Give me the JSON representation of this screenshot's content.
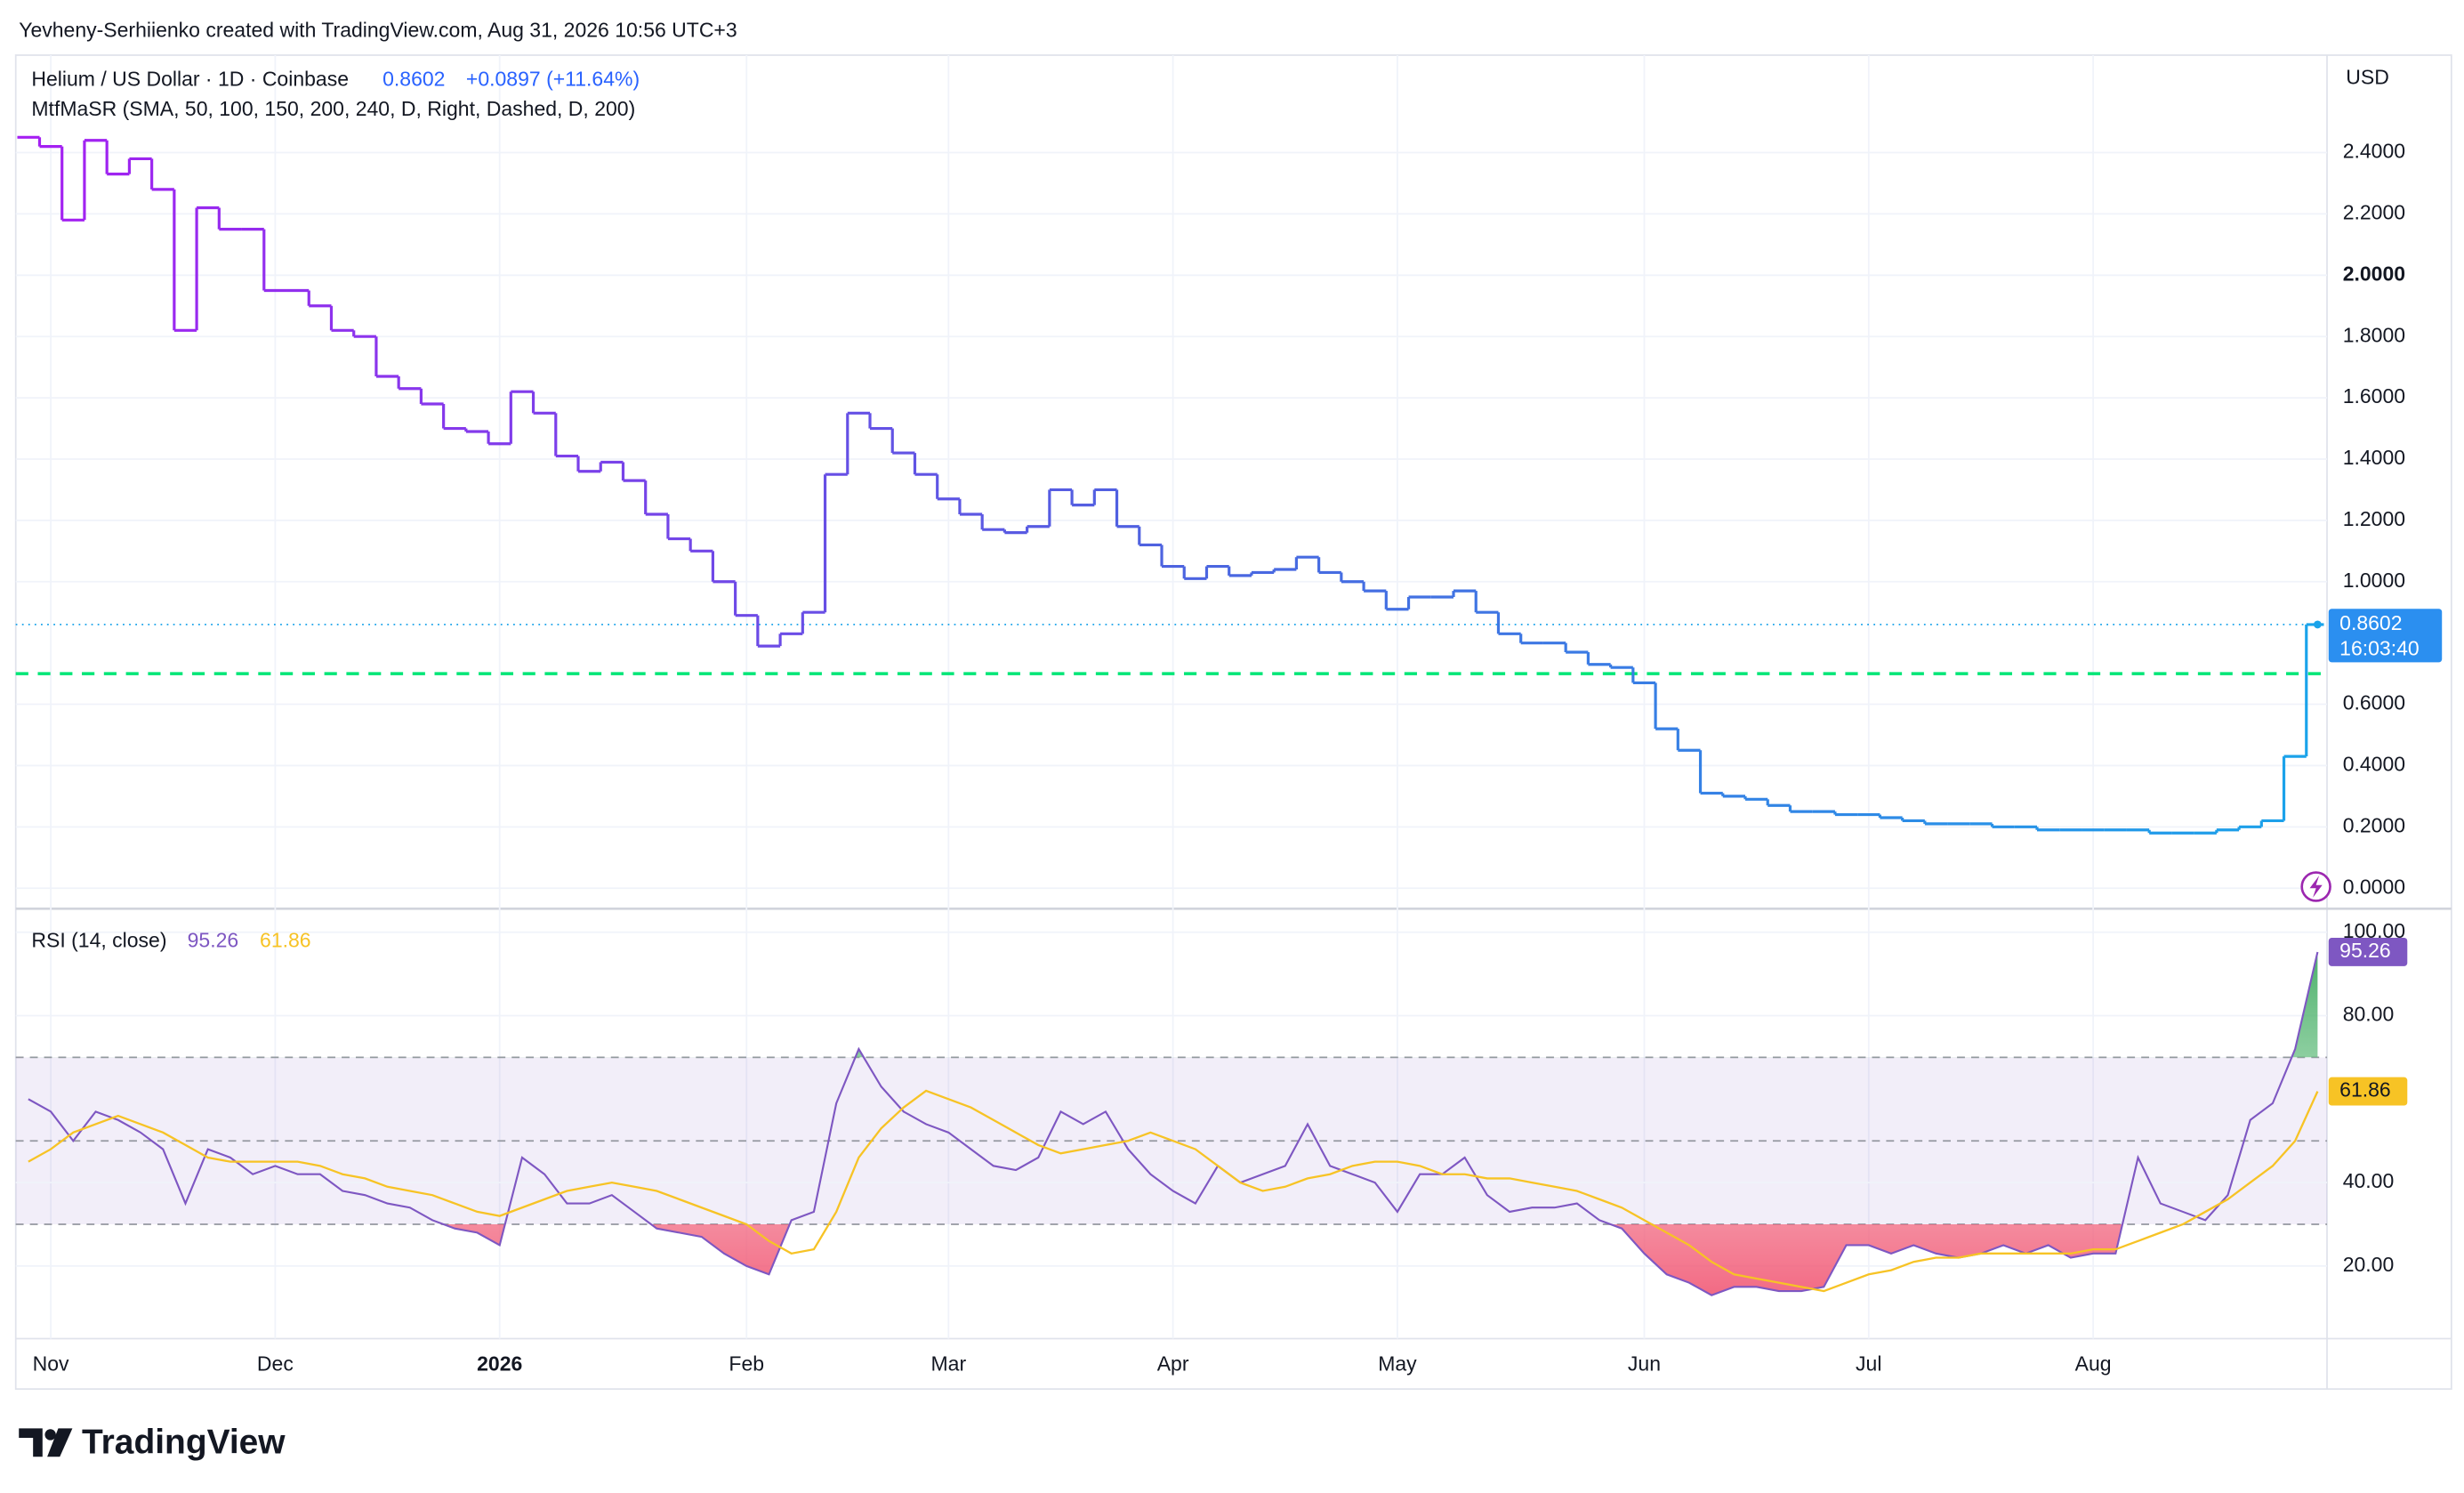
{
  "header": "Yevheny-Serhiienko created with TradingView.com, Aug 31, 2026 10:56 UTC+3",
  "logo": "TradingView",
  "chart_data": [
    {
      "type": "step-line",
      "title": "Helium / US Dollar · 1D · Coinbase",
      "change": "+0.0897 (+11.64%)",
      "indicator": "MtfMaSR (SMA, 50, 100, 150, 200, 240, D, Right, Dashed, D, 200)",
      "currency": "USD",
      "countdown": "16:03:40",
      "colors": [
        "#a61ff2",
        "#4d63e0",
        "#1aa3ea"
      ],
      "levels": [
        {
          "value": 0.7,
          "color": "#00e676"
        }
      ],
      "categories": [
        null,
        "Nov",
        null,
        null,
        null,
        null,
        null,
        null,
        null,
        null,
        null,
        "Dec",
        null,
        null,
        null,
        null,
        null,
        null,
        null,
        null,
        null,
        "2026",
        null,
        null,
        null,
        null,
        null,
        null,
        null,
        null,
        null,
        null,
        "Feb",
        null,
        null,
        null,
        null,
        null,
        null,
        null,
        null,
        "Mar",
        null,
        null,
        null,
        null,
        null,
        null,
        null,
        null,
        null,
        "Apr",
        null,
        null,
        null,
        null,
        null,
        null,
        null,
        null,
        null,
        "May",
        null,
        null,
        null,
        null,
        null,
        null,
        null,
        null,
        null,
        null,
        "Jun",
        null,
        null,
        null,
        null,
        null,
        null,
        null,
        null,
        null,
        "Jul",
        null,
        null,
        null,
        null,
        null,
        null,
        null,
        null,
        null,
        "Aug",
        null,
        null,
        null,
        null,
        null,
        null,
        null,
        null,
        null,
        null
      ],
      "values": [
        2.45,
        2.42,
        2.18,
        2.44,
        2.33,
        2.38,
        2.28,
        1.82,
        2.22,
        2.15,
        2.15,
        1.95,
        1.95,
        1.9,
        1.82,
        1.8,
        1.67,
        1.63,
        1.58,
        1.5,
        1.49,
        1.45,
        1.62,
        1.55,
        1.41,
        1.36,
        1.39,
        1.33,
        1.22,
        1.14,
        1.1,
        1.0,
        0.89,
        0.79,
        0.83,
        0.9,
        1.35,
        1.55,
        1.5,
        1.42,
        1.35,
        1.27,
        1.22,
        1.17,
        1.16,
        1.18,
        1.3,
        1.25,
        1.3,
        1.18,
        1.12,
        1.05,
        1.01,
        1.05,
        1.02,
        1.03,
        1.04,
        1.08,
        1.03,
        1.0,
        0.97,
        0.91,
        0.95,
        0.95,
        0.97,
        0.9,
        0.83,
        0.8,
        0.8,
        0.77,
        0.73,
        0.72,
        0.67,
        0.52,
        0.45,
        0.31,
        0.3,
        0.29,
        0.27,
        0.25,
        0.25,
        0.24,
        0.24,
        0.23,
        0.22,
        0.21,
        0.21,
        0.21,
        0.2,
        0.2,
        0.19,
        0.19,
        0.19,
        0.19,
        0.19,
        0.18,
        0.18,
        0.18,
        0.19,
        0.2,
        0.22,
        0.43,
        0.8602
      ],
      "ylim": [
        -0.067,
        2.718
      ],
      "yticks": [
        {
          "value": 0,
          "label": "0.0000"
        },
        {
          "value": 0.2,
          "label": "0.2000"
        },
        {
          "value": 0.4,
          "label": "0.4000"
        },
        {
          "value": 0.6,
          "label": "0.6000"
        },
        {
          "value": 1.0,
          "label": "1.0000"
        },
        {
          "value": 1.2,
          "label": "1.2000"
        },
        {
          "value": 1.4,
          "label": "1.4000"
        },
        {
          "value": 1.6,
          "label": "1.6000"
        },
        {
          "value": 1.8,
          "label": "1.8000"
        },
        {
          "value": 2.0,
          "label": "2.0000"
        },
        {
          "value": 2.2,
          "label": "2.2000"
        },
        {
          "value": 2.4,
          "label": "2.4000"
        }
      ],
      "grid": true
    },
    {
      "type": "line",
      "title": "RSI (14, close)",
      "series": [
        {
          "color": "#7e57c2",
          "values": [
            60,
            57,
            50,
            57,
            55,
            52,
            48,
            35,
            48,
            46,
            42,
            44,
            42,
            42,
            38,
            37,
            35,
            34,
            31,
            29,
            28,
            25,
            46,
            42,
            35,
            35,
            37,
            33,
            29,
            28,
            27,
            23,
            20,
            18,
            31,
            33,
            59,
            72,
            63,
            57,
            54,
            52,
            48,
            44,
            43,
            46,
            57,
            54,
            57,
            48,
            42,
            38,
            35,
            44,
            40,
            42,
            44,
            54,
            44,
            42,
            40,
            33,
            42,
            42,
            46,
            37,
            33,
            34,
            34,
            35,
            31,
            29,
            23,
            18,
            16,
            13,
            15,
            15,
            14,
            14,
            15,
            25,
            25,
            23,
            25,
            23,
            22,
            23,
            25,
            23,
            25,
            22,
            23,
            23,
            46,
            35,
            33,
            31,
            37,
            55,
            59,
            72,
            95.26
          ]
        },
        {
          "color": "#f7c325",
          "values": [
            45,
            48,
            52,
            54,
            56,
            54,
            52,
            49,
            46,
            45,
            45,
            45,
            45,
            44,
            42,
            41,
            39,
            38,
            37,
            35,
            33,
            32,
            34,
            36,
            38,
            39,
            40,
            39,
            38,
            36,
            34,
            32,
            30,
            26,
            23,
            24,
            33,
            46,
            53,
            58,
            62,
            60,
            58,
            55,
            52,
            49,
            47,
            48,
            49,
            50,
            52,
            50,
            48,
            44,
            40,
            38,
            39,
            41,
            42,
            44,
            45,
            45,
            44,
            42,
            42,
            41,
            41,
            40,
            39,
            38,
            36,
            34,
            31,
            28,
            25,
            21,
            18,
            17,
            16,
            15,
            14,
            16,
            18,
            19,
            21,
            22,
            22,
            23,
            23,
            23,
            23,
            23,
            24,
            24,
            26,
            28,
            30,
            33,
            36,
            40,
            44,
            50,
            61.86
          ]
        }
      ],
      "bands": [
        30,
        50,
        70
      ],
      "ylim": [
        2.6,
        104.5
      ],
      "yticks": [
        {
          "value": 20,
          "label": "20.00"
        },
        {
          "value": 40,
          "label": "40.00"
        },
        {
          "value": 80,
          "label": "80.00"
        },
        {
          "value": 100,
          "label": "100.00"
        }
      ],
      "grid": true
    }
  ]
}
